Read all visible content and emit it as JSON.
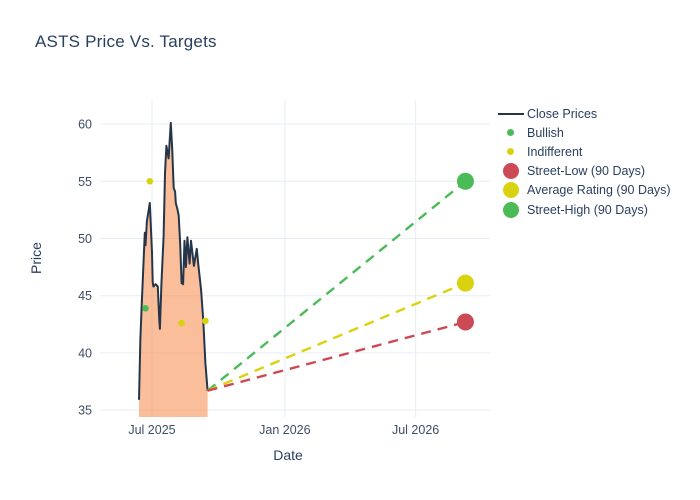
{
  "colors": {
    "line": "#25364a",
    "area_fill": "rgba(246,146,86,0.6)",
    "green": "#4bbb58",
    "yellow": "#d9d30f",
    "red": "#cc4a55",
    "grid": "#e7edf5",
    "text": "#2a3f5f"
  },
  "legend": [
    {
      "label": "Close Prices",
      "type": "line",
      "color": "#25364a"
    },
    {
      "label": "Bullish",
      "type": "dot",
      "color": "#4bbb58"
    },
    {
      "label": "Indifferent",
      "type": "dot",
      "color": "#d9d30f"
    },
    {
      "label": "Street-Low (90 Days)",
      "type": "circle",
      "color": "#cc4a55"
    },
    {
      "label": "Average Rating (90 Days)",
      "type": "circle",
      "color": "#d9d30f"
    },
    {
      "label": "Street-High (90 Days)",
      "type": "circle",
      "color": "#4bbb58"
    }
  ],
  "chart_data": {
    "type": "line",
    "title": "ASTS Price Vs. Targets",
    "xlabel": "Date",
    "ylabel": "Price",
    "grid": true,
    "legend_position": "right",
    "x_range": [
      "2025-04-20",
      "2026-10-12"
    ],
    "y_range": [
      34.4,
      62.1
    ],
    "yticks": [
      35,
      40,
      45,
      50,
      55,
      60
    ],
    "xticks": [
      {
        "label": "Jul 2025",
        "date": "2025-07-01"
      },
      {
        "label": "Jan 2026",
        "date": "2026-01-01"
      },
      {
        "label": "Jul 2026",
        "date": "2026-07-01"
      }
    ],
    "close_prices": {
      "name": "Close Prices",
      "x": [
        "2025-06-13",
        "2025-06-15",
        "2025-06-17",
        "2025-06-21",
        "2025-06-22",
        "2025-06-24",
        "2025-06-28",
        "2025-07-01",
        "2025-07-02",
        "2025-07-03",
        "2025-07-06",
        "2025-07-09",
        "2025-07-11",
        "2025-07-12",
        "2025-07-14",
        "2025-07-17",
        "2025-07-19",
        "2025-07-21",
        "2025-07-24",
        "2025-07-27",
        "2025-07-29",
        "2025-07-31",
        "2025-08-02",
        "2025-08-03",
        "2025-08-05",
        "2025-08-07",
        "2025-08-09",
        "2025-08-11",
        "2025-08-13",
        "2025-08-15",
        "2025-08-17",
        "2025-08-19",
        "2025-08-22",
        "2025-08-24",
        "2025-08-28",
        "2025-09-01",
        "2025-09-03",
        "2025-09-07",
        "2025-09-10",
        "2025-09-13",
        "2025-09-16"
      ],
      "y": [
        35.9,
        41.3,
        44.6,
        50.5,
        49.4,
        51.5,
        53.1,
        48.8,
        46.2,
        45.8,
        46.0,
        45.8,
        43.0,
        42.1,
        46.0,
        50.2,
        55.7,
        58.1,
        57.0,
        60.1,
        57.8,
        54.4,
        54.1,
        53.1,
        52.6,
        52.0,
        49.5,
        46.1,
        46.0,
        49.8,
        47.5,
        50.1,
        47.8,
        49.8,
        47.6,
        49.1,
        47.8,
        45.5,
        42.8,
        39.1,
        36.7
      ]
    },
    "sentiment_markers": {
      "bullish": [
        {
          "date": "2025-06-22",
          "price": 43.9
        }
      ],
      "indifferent": [
        {
          "date": "2025-06-28",
          "price": 55.0
        },
        {
          "date": "2025-08-11",
          "price": 42.6
        },
        {
          "date": "2025-09-13",
          "price": 42.8
        }
      ]
    },
    "targets": {
      "anchor": {
        "date": "2025-09-16",
        "price": 36.7
      },
      "end_date": "2026-09-08",
      "street_low": 42.7,
      "average": 46.1,
      "street_high": 55.0
    }
  }
}
